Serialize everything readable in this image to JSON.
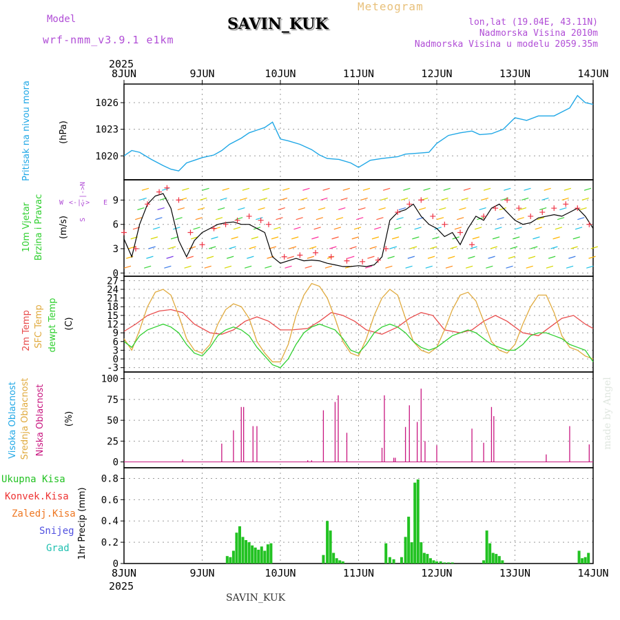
{
  "header": {
    "model_label": "Model",
    "model_name": "wrf-nmm_v3.9.1 e1km",
    "station": "SAVIN_KUK",
    "meteogram": "Meteogram",
    "lonlat": "lon,lat (19.04E, 43.11N)",
    "elevation": "Nadmorska Visina 2010m",
    "model_elevation": "Nadmorska Visina u modelu 2059.35m"
  },
  "footer": {
    "station": "SAVIN_KUK"
  },
  "watermark": "made by Angel",
  "time_axis": {
    "year": "2025",
    "labels": [
      "8JUN",
      "9JUN",
      "10JUN",
      "11JUN",
      "12JUN",
      "13JUN",
      "14JUN"
    ]
  },
  "chart_data": [
    {
      "type": "line",
      "panel": "pressure",
      "ylabel": "Pritisak na nivou mora",
      "unit": "(hPa)",
      "ylim": [
        1017.3,
        1028.1
      ],
      "yticks": [
        "1020",
        "1023",
        "1026"
      ],
      "series": [
        {
          "color": "#1fa7e6",
          "x": [
            0,
            0.1,
            0.2,
            0.35,
            0.5,
            0.6,
            0.7,
            0.8,
            0.9,
            1.0,
            1.15,
            1.25,
            1.35,
            1.5,
            1.6,
            1.7,
            1.8,
            1.9,
            2.0,
            2.1,
            2.25,
            2.4,
            2.5,
            2.6,
            2.75,
            2.9,
            3.0,
            3.15,
            3.3,
            3.5,
            3.6,
            3.75,
            3.9,
            4.0,
            4.15,
            4.3,
            4.45,
            4.55,
            4.7,
            4.85,
            5.0,
            5.15,
            5.3,
            5.5,
            5.7,
            5.8,
            5.9,
            6.0
          ],
          "y": [
            1020.0,
            1020.6,
            1020.4,
            1019.6,
            1018.9,
            1018.5,
            1018.3,
            1019.2,
            1019.5,
            1019.8,
            1020.1,
            1020.6,
            1021.3,
            1022.0,
            1022.6,
            1022.9,
            1023.2,
            1023.8,
            1021.9,
            1021.7,
            1021.3,
            1020.7,
            1020.1,
            1019.7,
            1019.6,
            1019.2,
            1018.7,
            1019.5,
            1019.7,
            1019.9,
            1020.2,
            1020.3,
            1020.4,
            1021.4,
            1022.3,
            1022.6,
            1022.8,
            1022.4,
            1022.5,
            1023.0,
            1024.3,
            1024.0,
            1024.5,
            1024.5,
            1025.4,
            1026.8,
            1026.0,
            1025.8
          ]
        }
      ]
    },
    {
      "type": "line",
      "panel": "wind",
      "ylabel": "10m Vjetar Brzina i Pravac",
      "unit": "(m/s)",
      "compass": {
        "n": "N",
        "s": "S",
        "e": "E",
        "w": "W"
      },
      "ylim": [
        -0.4,
        11.5
      ],
      "yticks": [
        "0",
        "3",
        "6",
        "9"
      ],
      "series": [
        {
          "name": "speed",
          "color": "#000",
          "x": [
            0,
            0.1,
            0.2,
            0.3,
            0.4,
            0.5,
            0.6,
            0.7,
            0.8,
            0.9,
            1.0,
            1.1,
            1.2,
            1.3,
            1.4,
            1.5,
            1.6,
            1.7,
            1.8,
            1.9,
            2.0,
            2.1,
            2.2,
            2.3,
            2.4,
            2.5,
            2.6,
            2.7,
            2.8,
            2.9,
            3.0,
            3.1,
            3.2,
            3.3,
            3.4,
            3.5,
            3.6,
            3.7,
            3.8,
            3.9,
            4.0,
            4.1,
            4.2,
            4.3,
            4.4,
            4.5,
            4.6,
            4.7,
            4.8,
            4.9,
            5.0,
            5.1,
            5.2,
            5.3,
            5.4,
            5.5,
            5.6,
            5.7,
            5.8,
            5.9,
            6.0
          ],
          "y": [
            4.2,
            2.0,
            6.0,
            8.5,
            9.5,
            9.8,
            8.0,
            4.0,
            2.0,
            4.0,
            5.0,
            5.5,
            6.0,
            6.2,
            6.3,
            6.0,
            6.0,
            5.5,
            5.0,
            2.0,
            1.2,
            1.5,
            1.8,
            1.5,
            1.6,
            1.5,
            1.2,
            1.0,
            0.8,
            0.8,
            0.9,
            0.8,
            1.0,
            2.0,
            6.5,
            7.5,
            7.8,
            8.5,
            7.0,
            6.0,
            5.5,
            4.5,
            5.0,
            3.5,
            5.5,
            7.0,
            6.5,
            8.0,
            8.5,
            7.5,
            6.5,
            6.0,
            6.2,
            6.8,
            7.0,
            7.2,
            7.0,
            7.5,
            8.0,
            7.0,
            5.5
          ]
        }
      ],
      "gust": {
        "x": [
          0,
          0.15,
          0.3,
          0.45,
          0.55,
          0.7,
          0.85,
          1.0,
          1.15,
          1.3,
          1.45,
          1.6,
          1.75,
          1.85,
          2.05,
          2.25,
          2.45,
          2.65,
          2.85,
          3.05,
          3.25,
          3.35,
          3.5,
          3.65,
          3.8,
          3.95,
          4.1,
          4.3,
          4.45,
          4.6,
          4.75,
          4.9,
          5.05,
          5.2,
          5.35,
          5.5,
          5.65,
          5.8,
          5.95
        ],
        "y": [
          5.0,
          3.0,
          8.5,
          10.0,
          10.5,
          9.0,
          5.0,
          3.5,
          5.5,
          6.0,
          6.5,
          7.0,
          6.5,
          6.0,
          2.0,
          2.2,
          2.5,
          2.0,
          1.5,
          1.4,
          1.6,
          3.0,
          7.5,
          8.5,
          9.0,
          7.0,
          6.0,
          5.0,
          3.5,
          7.0,
          8.0,
          9.0,
          8.0,
          7.0,
          7.5,
          8.0,
          8.5,
          8.0,
          6.0
        ]
      }
    },
    {
      "type": "line",
      "panel": "temperature",
      "ylabel": "2m Temp / SFC Temp / dewpt Temp",
      "unit": "(C)",
      "ylim": [
        -4.5,
        28.5
      ],
      "yticks": [
        "-3",
        "0",
        "3",
        "6",
        "9",
        "12",
        "15",
        "18",
        "21",
        "24",
        "27"
      ],
      "series": [
        {
          "name": "2m Temp",
          "color": "#e84b4b",
          "x": [
            0,
            0.15,
            0.3,
            0.45,
            0.6,
            0.75,
            0.9,
            1.1,
            1.25,
            1.4,
            1.55,
            1.7,
            1.85,
            2.0,
            2.15,
            2.35,
            2.5,
            2.65,
            2.8,
            2.95,
            3.1,
            3.3,
            3.5,
            3.65,
            3.8,
            3.95,
            4.1,
            4.3,
            4.45,
            4.6,
            4.75,
            4.9,
            5.1,
            5.3,
            5.45,
            5.6,
            5.75,
            5.9,
            6.0
          ],
          "y": [
            9.5,
            12,
            15,
            16.5,
            17,
            16,
            12,
            9,
            8.5,
            10,
            13,
            14.5,
            13,
            10,
            10,
            10.5,
            13,
            16,
            15,
            13,
            10,
            8.5,
            11,
            14,
            16,
            15,
            10,
            9,
            10,
            13,
            15,
            13,
            9,
            8,
            11,
            14,
            15,
            12,
            10.5
          ]
        },
        {
          "name": "SFC Temp",
          "color": "#e0aa3e",
          "x": [
            0,
            0.1,
            0.2,
            0.3,
            0.4,
            0.5,
            0.6,
            0.7,
            0.8,
            0.9,
            1.0,
            1.1,
            1.2,
            1.3,
            1.4,
            1.5,
            1.6,
            1.7,
            1.8,
            1.9,
            2.0,
            2.1,
            2.2,
            2.3,
            2.4,
            2.5,
            2.6,
            2.7,
            2.8,
            2.9,
            3.0,
            3.1,
            3.2,
            3.3,
            3.4,
            3.5,
            3.6,
            3.7,
            3.8,
            3.9,
            4.0,
            4.1,
            4.2,
            4.3,
            4.4,
            4.5,
            4.6,
            4.7,
            4.8,
            4.9,
            5.0,
            5.1,
            5.2,
            5.3,
            5.4,
            5.5,
            5.6,
            5.7,
            5.8,
            5.9,
            6.0
          ],
          "y": [
            7,
            3,
            10,
            18,
            23,
            24,
            22,
            15,
            7,
            3,
            2,
            5,
            12,
            17,
            19,
            18,
            14,
            6,
            2,
            -1,
            -1,
            5,
            15,
            22,
            26,
            25,
            21,
            14,
            6,
            2,
            1,
            7,
            15,
            21,
            24,
            22,
            14,
            6,
            3,
            2,
            4,
            10,
            17,
            22,
            23,
            20,
            13,
            6,
            3,
            2,
            5,
            12,
            18,
            22,
            22,
            16,
            8,
            4,
            3,
            1,
            0
          ]
        },
        {
          "name": "dewpt Temp",
          "color": "#2fcf2f",
          "x": [
            0,
            0.1,
            0.2,
            0.3,
            0.4,
            0.5,
            0.6,
            0.7,
            0.8,
            0.9,
            1.0,
            1.1,
            1.2,
            1.3,
            1.4,
            1.5,
            1.6,
            1.7,
            1.8,
            1.9,
            2.0,
            2.1,
            2.2,
            2.3,
            2.4,
            2.5,
            2.6,
            2.7,
            2.8,
            2.9,
            3.0,
            3.1,
            3.2,
            3.3,
            3.4,
            3.5,
            3.6,
            3.7,
            3.8,
            3.9,
            4.0,
            4.1,
            4.2,
            4.3,
            4.4,
            4.5,
            4.6,
            4.7,
            4.8,
            4.9,
            5.0,
            5.1,
            5.2,
            5.3,
            5.4,
            5.5,
            5.6,
            5.7,
            5.8,
            5.9,
            6.0
          ],
          "y": [
            6,
            4,
            8,
            10,
            11,
            12,
            11,
            9,
            5,
            2,
            1,
            4,
            8,
            10,
            11,
            10,
            8,
            4,
            1,
            -2,
            -3,
            0,
            5,
            9,
            11,
            12,
            11,
            10,
            7,
            3,
            2,
            5,
            9,
            11,
            12,
            11,
            9,
            6,
            4,
            3,
            4,
            6,
            8,
            9,
            10,
            9,
            7,
            5,
            4,
            3,
            3,
            5,
            8,
            9,
            9,
            8,
            7,
            5,
            4,
            3,
            -1
          ]
        }
      ]
    },
    {
      "type": "bar",
      "panel": "clouds",
      "ylabel": "Visoka Oblacnost / Srednja Oblacnost / Niska Oblacnost",
      "unit": "(%)",
      "ylim": [
        -7,
        108
      ],
      "yticks": [
        "0",
        "25",
        "50",
        "75",
        "100"
      ],
      "series": [
        {
          "name": "Niska Oblacnost",
          "color": "#c8157f",
          "x": [
            0.75,
            1.25,
            1.4,
            1.5,
            1.53,
            1.65,
            1.7,
            2.35,
            2.4,
            2.55,
            2.7,
            2.74,
            2.85,
            3.3,
            3.33,
            3.45,
            3.47,
            3.6,
            3.65,
            3.75,
            3.8,
            3.85,
            4.0,
            4.45,
            4.6,
            4.7,
            4.73,
            5.4,
            5.7,
            5.95
          ],
          "y": [
            3,
            22,
            38,
            66,
            66,
            43,
            43,
            2,
            2,
            62,
            72,
            80,
            35,
            17,
            80,
            5,
            5,
            42,
            68,
            48,
            88,
            25,
            20,
            40,
            23,
            66,
            55,
            9,
            43,
            21
          ]
        }
      ]
    },
    {
      "type": "bar",
      "panel": "precipitation",
      "ylabel": "1hr Precip",
      "unit": "(mm)",
      "ylim": [
        0,
        0.9
      ],
      "yticks": [
        "0",
        "0.2",
        "0.4",
        "0.6",
        "0.8"
      ],
      "legend": [
        "Ukupna Kisa",
        "Konvek.Kisa",
        "Zaledj.Kisa",
        "Snijeg",
        "Grad"
      ],
      "series": [
        {
          "name": "Ukupna Kisa",
          "color": "#22c222",
          "x": [
            1.32,
            1.36,
            1.4,
            1.44,
            1.48,
            1.52,
            1.56,
            1.6,
            1.64,
            1.68,
            1.72,
            1.76,
            1.8,
            1.84,
            1.88,
            2.55,
            2.6,
            2.64,
            2.68,
            2.72,
            2.76,
            2.8,
            3.35,
            3.4,
            3.45,
            3.55,
            3.6,
            3.64,
            3.68,
            3.72,
            3.76,
            3.8,
            3.84,
            3.88,
            3.92,
            3.96,
            4.0,
            4.05,
            4.1,
            4.15,
            4.2,
            4.6,
            4.64,
            4.68,
            4.72,
            4.76,
            4.8,
            4.84,
            5.82,
            5.86,
            5.9,
            5.94
          ],
          "y": [
            0.07,
            0.06,
            0.12,
            0.29,
            0.35,
            0.25,
            0.22,
            0.2,
            0.17,
            0.15,
            0.13,
            0.16,
            0.12,
            0.18,
            0.19,
            0.08,
            0.4,
            0.31,
            0.1,
            0.05,
            0.03,
            0.02,
            0.19,
            0.06,
            0.04,
            0.06,
            0.25,
            0.44,
            0.2,
            0.76,
            0.79,
            0.2,
            0.1,
            0.09,
            0.05,
            0.03,
            0.02,
            0.02,
            0.01,
            0.01,
            0.01,
            0.03,
            0.31,
            0.19,
            0.1,
            0.09,
            0.07,
            0.03,
            0.12,
            0.05,
            0.06,
            0.1
          ]
        }
      ]
    }
  ],
  "colors": {
    "pressure": "#1fa7e6",
    "t2m": "#e84b4b",
    "sfc": "#e0aa3e",
    "dew": "#2fcf2f",
    "cloud_low": "#c8157f",
    "precip": "#22c222",
    "konvek": "#ee3333",
    "zaledj": "#ee7722",
    "snijeg": "#5050e0",
    "grad": "#20c0b0",
    "header_purple": "#b04dd6"
  }
}
